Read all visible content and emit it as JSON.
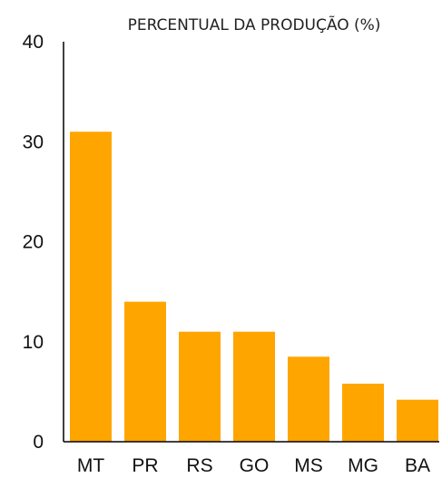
{
  "chart_data": {
    "type": "bar",
    "title": "PERCENTUAL DA PRODUÇÃO (%)",
    "xlabel": "",
    "ylabel": "",
    "categories": [
      "MT",
      "PR",
      "RS",
      "GO",
      "MS",
      "MG",
      "BA"
    ],
    "values": [
      31.0,
      14.0,
      11.0,
      11.0,
      8.5,
      5.8,
      4.2
    ],
    "ylim": [
      0,
      40
    ],
    "yticks": [
      "0",
      "10",
      "20",
      "30",
      "40"
    ],
    "bar_color": "#FFA500",
    "grid": false,
    "legend": "none"
  }
}
